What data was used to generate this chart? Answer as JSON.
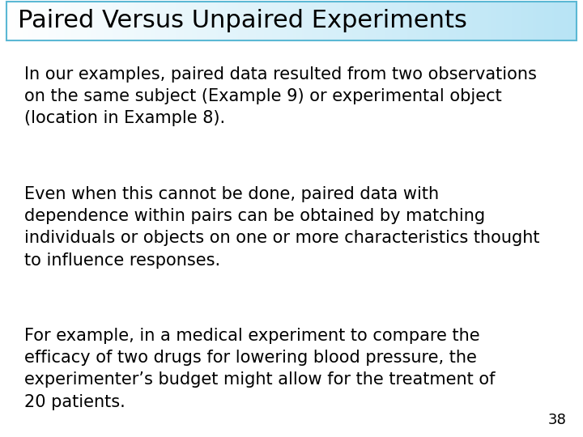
{
  "title": "Paired Versus Unpaired Experiments",
  "title_fontsize": 22,
  "title_color": "#000000",
  "title_bg_color_left": "#ffffff",
  "title_bg_color_right": "#b8e4f5",
  "title_border_color": "#5bb8d4",
  "background_color": "#ffffff",
  "paragraph1": "In our examples, paired data resulted from two observations\non the same subject (Example 9) or experimental object\n(location in Example 8).",
  "paragraph2": "Even when this cannot be done, paired data with\ndependence within pairs can be obtained by matching\nindividuals or objects on one or more characteristics thought\nto influence responses.",
  "paragraph3": "For example, in a medical experiment to compare the\nefficacy of two drugs for lowering blood pressure, the\nexperimenter’s budget might allow for the treatment of\n20 patients.",
  "body_fontsize": 15,
  "body_color": "#000000",
  "page_number": "38",
  "page_number_fontsize": 13
}
